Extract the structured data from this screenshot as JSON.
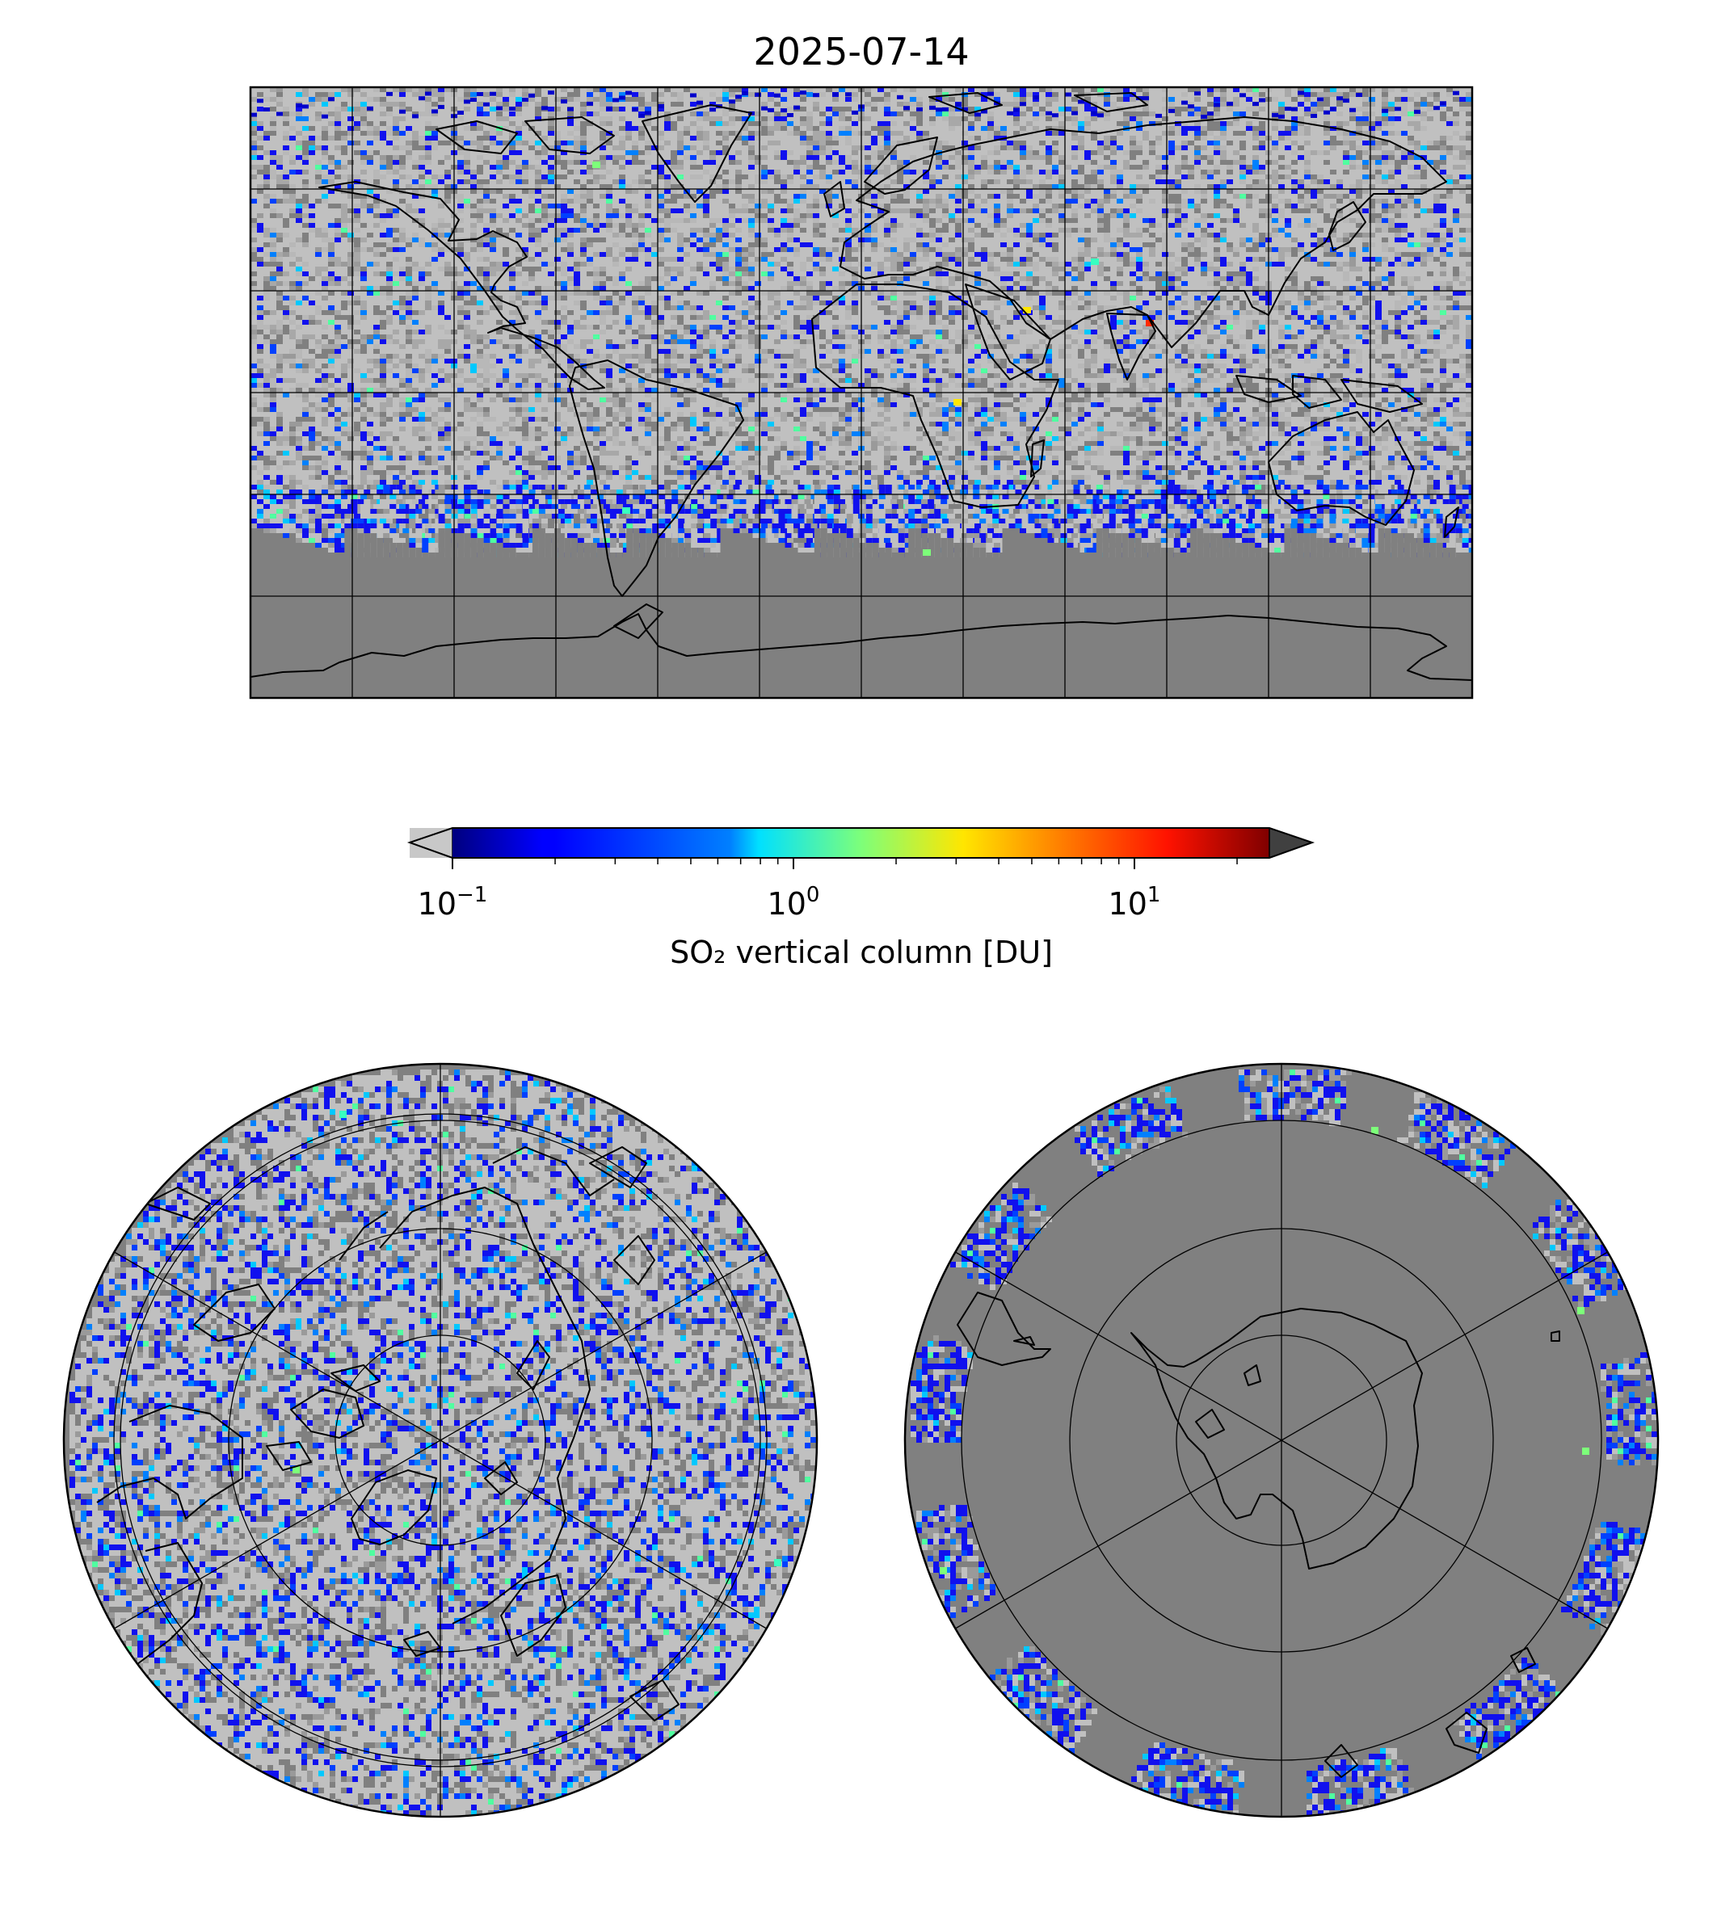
{
  "title": "2025-07-14",
  "colorbar": {
    "label": "SO₂ vertical column [DU]",
    "scale": "log",
    "range": [
      0.1,
      25
    ],
    "extend": "both",
    "under_color": "#c8c8c8",
    "over_color": "#404040",
    "colormap": "jet",
    "ticks": [
      {
        "base": "10",
        "exponent": "−1",
        "value": 0.1
      },
      {
        "base": "10",
        "exponent": "0",
        "value": 1
      },
      {
        "base": "10",
        "exponent": "1",
        "value": 10
      }
    ]
  },
  "colors": {
    "no_data": "#808080",
    "low_value_light": "#c0c0c0",
    "coastline": "#000000",
    "gridline": "#000000"
  },
  "maps": [
    {
      "name": "global",
      "projection": "plate-carree",
      "grid_lon_step_deg": 30,
      "grid_lat_step_deg": 30
    },
    {
      "name": "north-pole",
      "projection": "north-polar-stereographic",
      "circles_lat_deg": [
        80,
        60,
        40,
        20
      ],
      "meridians_deg": [
        0,
        60,
        120,
        180,
        240,
        300
      ]
    },
    {
      "name": "south-pole",
      "projection": "south-polar-stereographic",
      "circles_lat_deg": [
        -80,
        -60,
        -40,
        -20
      ],
      "meridians_deg": [
        0,
        60,
        120,
        180,
        240,
        300
      ]
    }
  ]
}
